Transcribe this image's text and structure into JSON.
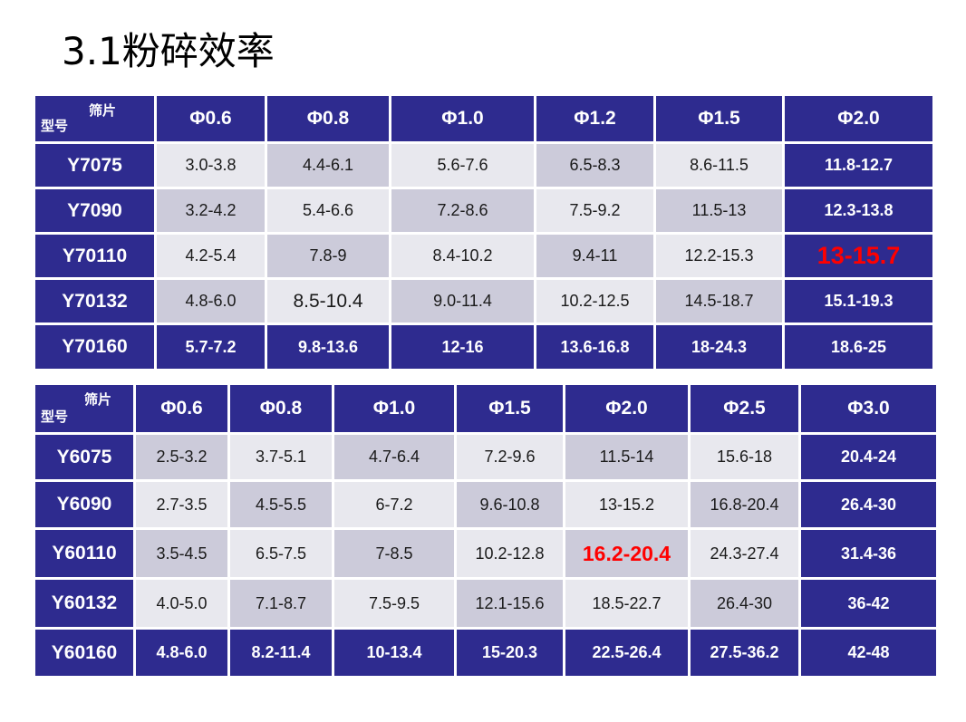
{
  "title": "3.1粉碎效率",
  "table1": {
    "corner_top": "筛片",
    "corner_bottom": "型号",
    "headers": [
      "Φ0.6",
      "Φ0.8",
      "Φ1.0",
      "Φ1.2",
      "Φ1.5",
      "Φ2.0"
    ],
    "rows": [
      {
        "model": "Y7075",
        "values": [
          "3.0-3.8",
          "4.4-6.1",
          "5.6-7.6",
          "6.5-8.3",
          "8.6-11.5",
          "11.8-12.7"
        ]
      },
      {
        "model": "Y7090",
        "values": [
          "3.2-4.2",
          "5.4-6.6",
          "7.2-8.6",
          "7.5-9.2",
          "11.5-13",
          "12.3-13.8"
        ]
      },
      {
        "model": "Y70110",
        "values": [
          "4.2-5.4",
          "7.8-9",
          "8.4-10.2",
          "9.4-11",
          "12.2-15.3",
          "13-15.7"
        ]
      },
      {
        "model": "Y70132",
        "values": [
          "4.8-6.0",
          "8.5-10.4",
          "9.0-11.4",
          "10.2-12.5",
          "14.5-18.7",
          "15.1-19.3"
        ]
      },
      {
        "model": "Y70160",
        "values": [
          "5.7-7.2",
          "9.8-13.6",
          "12-16",
          "13.6-16.8",
          "18-24.3",
          "18.6-25"
        ]
      }
    ],
    "highlight_color": "#ff0000"
  },
  "table2": {
    "corner_top": "筛片",
    "corner_bottom": "型号",
    "headers": [
      "Φ0.6",
      "Φ0.8",
      "Φ1.0",
      "Φ1.5",
      "Φ2.0",
      "Φ2.5",
      "Φ3.0"
    ],
    "rows": [
      {
        "model": "Y6075",
        "values": [
          "2.5-3.2",
          "3.7-5.1",
          "4.7-6.4",
          "7.2-9.6",
          "11.5-14",
          "15.6-18",
          "20.4-24"
        ]
      },
      {
        "model": "Y6090",
        "values": [
          "2.7-3.5",
          "4.5-5.5",
          "6-7.2",
          "9.6-10.8",
          "13-15.2",
          "16.8-20.4",
          "26.4-30"
        ]
      },
      {
        "model": "Y60110",
        "values": [
          "3.5-4.5",
          "6.5-7.5",
          "7-8.5",
          "10.2-12.8",
          "16.2-20.4",
          "24.3-27.4",
          "31.4-36"
        ]
      },
      {
        "model": "Y60132",
        "values": [
          "4.0-5.0",
          "7.1-8.7",
          "7.5-9.5",
          "12.1-15.6",
          "18.5-22.7",
          "26.4-30",
          "36-42"
        ]
      },
      {
        "model": "Y60160",
        "values": [
          "4.8-6.0",
          "8.2-11.4",
          "10-13.4",
          "15-20.3",
          "22.5-26.4",
          "27.5-36.2",
          "42-48"
        ]
      }
    ],
    "highlight_color": "#ff0000"
  },
  "colors": {
    "header_bg": "#2e2b8f",
    "cell_light": "#e8e8ee",
    "cell_dark": "#cccbda",
    "text": "#1a1a1a"
  }
}
